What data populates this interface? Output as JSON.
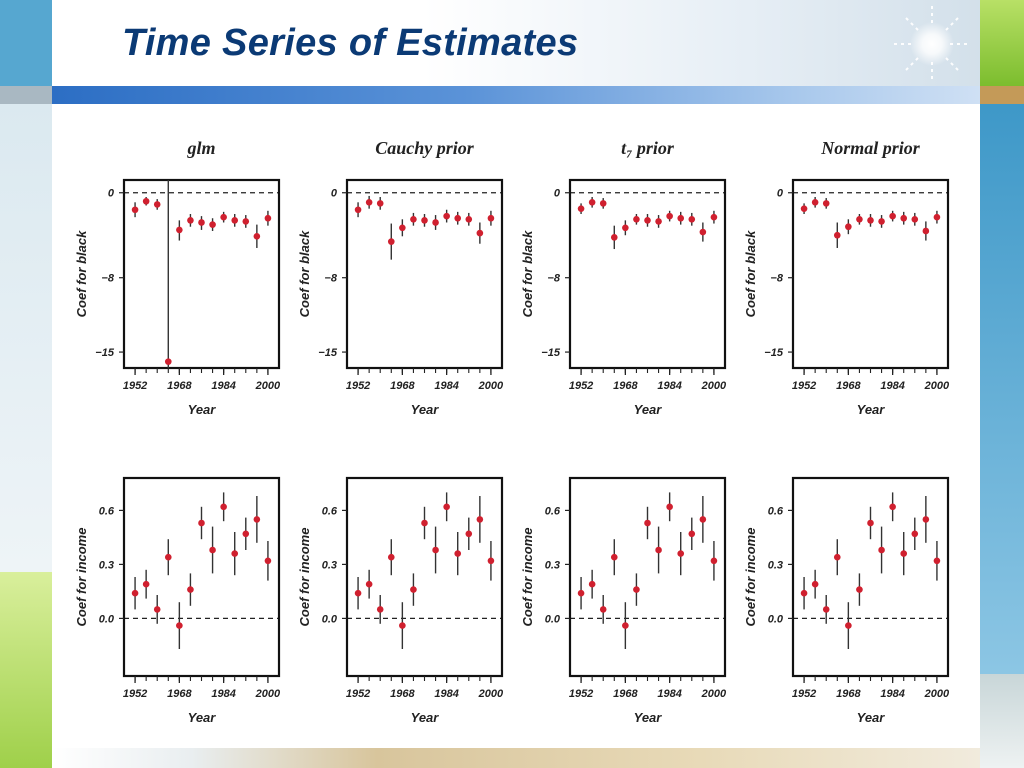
{
  "slide": {
    "title": "Time Series of Estimates",
    "colors": {
      "title": "#0b3a75",
      "marker": "#d0202f",
      "frame": "#111111",
      "accent_blue": "#3d7fd1",
      "accent_green": "#8cc63e"
    }
  },
  "chart_data": [
    {
      "type": "scatter",
      "title": "glm",
      "xlabel": "Year",
      "ylabel": "Coef for black",
      "xlim": [
        1948,
        2004
      ],
      "ylim": [
        -16.5,
        1.2
      ],
      "xticks": [
        "1952",
        "1968",
        "1984",
        "2000"
      ],
      "yticks": [
        "0",
        "-8",
        "-15"
      ],
      "ref_line": 0,
      "x": [
        1952,
        1956,
        1960,
        1964,
        1968,
        1972,
        1976,
        1980,
        1984,
        1988,
        1992,
        1996,
        2000
      ],
      "y": [
        -1.6,
        -0.8,
        -1.1,
        -15.9,
        -3.5,
        -2.6,
        -2.8,
        -3.0,
        -2.3,
        -2.6,
        -2.7,
        -4.1,
        -2.4
      ],
      "lower": [
        -2.3,
        -1.2,
        -1.6,
        -16.5,
        -4.5,
        -3.2,
        -3.5,
        -3.6,
        -2.8,
        -3.2,
        -3.3,
        -5.2,
        -3.1
      ],
      "upper": [
        -0.9,
        -0.4,
        -0.6,
        1.2,
        -2.6,
        -2.0,
        -2.2,
        -2.4,
        -1.8,
        -2.0,
        -2.1,
        -3.0,
        -1.7
      ]
    },
    {
      "type": "scatter",
      "title": "Cauchy prior",
      "xlabel": "Year",
      "ylabel": "Coef for black",
      "xlim": [
        1948,
        2004
      ],
      "ylim": [
        -16.5,
        1.2
      ],
      "xticks": [
        "1952",
        "1968",
        "1984",
        "2000"
      ],
      "yticks": [
        "0",
        "-8",
        "-15"
      ],
      "ref_line": 0,
      "x": [
        1952,
        1956,
        1960,
        1964,
        1968,
        1972,
        1976,
        1980,
        1984,
        1988,
        1992,
        1996,
        2000
      ],
      "y": [
        -1.6,
        -0.9,
        -1.0,
        -4.6,
        -3.3,
        -2.5,
        -2.6,
        -2.8,
        -2.2,
        -2.4,
        -2.5,
        -3.8,
        -2.4
      ],
      "lower": [
        -2.3,
        -1.5,
        -1.6,
        -6.3,
        -4.1,
        -3.1,
        -3.2,
        -3.5,
        -2.8,
        -3.0,
        -3.1,
        -4.8,
        -3.1
      ],
      "upper": [
        -0.9,
        -0.3,
        -0.4,
        -2.9,
        -2.5,
        -1.9,
        -2.0,
        -2.1,
        -1.6,
        -1.8,
        -1.9,
        -2.8,
        -1.7
      ]
    },
    {
      "type": "scatter",
      "title": "t₇ prior",
      "xlabel": "Year",
      "ylabel": "Coef for black",
      "xlim": [
        1948,
        2004
      ],
      "ylim": [
        -16.5,
        1.2
      ],
      "xticks": [
        "1952",
        "1968",
        "1984",
        "2000"
      ],
      "yticks": [
        "0",
        "-8",
        "-15"
      ],
      "ref_line": 0,
      "x": [
        1952,
        1956,
        1960,
        1964,
        1968,
        1972,
        1976,
        1980,
        1984,
        1988,
        1992,
        1996,
        2000
      ],
      "y": [
        -1.5,
        -0.9,
        -1.0,
        -4.2,
        -3.3,
        -2.5,
        -2.6,
        -2.7,
        -2.2,
        -2.4,
        -2.5,
        -3.7,
        -2.3
      ],
      "lower": [
        -2.0,
        -1.4,
        -1.5,
        -5.3,
        -4.0,
        -3.0,
        -3.2,
        -3.3,
        -2.7,
        -3.0,
        -3.1,
        -4.6,
        -2.9
      ],
      "upper": [
        -1.0,
        -0.4,
        -0.5,
        -3.1,
        -2.6,
        -2.0,
        -2.0,
        -2.1,
        -1.7,
        -1.8,
        -1.9,
        -2.8,
        -1.7
      ]
    },
    {
      "type": "scatter",
      "title": "Normal prior",
      "xlabel": "Year",
      "ylabel": "Coef for black",
      "xlim": [
        1948,
        2004
      ],
      "ylim": [
        -16.5,
        1.2
      ],
      "xticks": [
        "1952",
        "1968",
        "1984",
        "2000"
      ],
      "yticks": [
        "0",
        "-8",
        "-15"
      ],
      "ref_line": 0,
      "x": [
        1952,
        1956,
        1960,
        1964,
        1968,
        1972,
        1976,
        1980,
        1984,
        1988,
        1992,
        1996,
        2000
      ],
      "y": [
        -1.5,
        -0.9,
        -1.0,
        -4.0,
        -3.2,
        -2.5,
        -2.6,
        -2.7,
        -2.2,
        -2.4,
        -2.5,
        -3.6,
        -2.3
      ],
      "lower": [
        -2.0,
        -1.4,
        -1.5,
        -5.2,
        -3.9,
        -3.0,
        -3.2,
        -3.3,
        -2.7,
        -3.0,
        -3.1,
        -4.5,
        -2.9
      ],
      "upper": [
        -1.0,
        -0.4,
        -0.5,
        -2.8,
        -2.5,
        -2.0,
        -2.0,
        -2.1,
        -1.7,
        -1.8,
        -1.9,
        -2.7,
        -1.7
      ]
    },
    {
      "type": "scatter",
      "title": "",
      "xlabel": "Year",
      "ylabel": "Coef for income",
      "xlim": [
        1948,
        2004
      ],
      "ylim": [
        -0.32,
        0.78
      ],
      "xticks": [
        "1952",
        "1968",
        "1984",
        "2000"
      ],
      "yticks": [
        "0.6",
        "0.3",
        "0.0"
      ],
      "ref_line": 0,
      "x": [
        1952,
        1956,
        1960,
        1964,
        1968,
        1972,
        1976,
        1980,
        1984,
        1988,
        1992,
        1996,
        2000
      ],
      "y": [
        0.14,
        0.19,
        0.05,
        0.34,
        -0.04,
        0.16,
        0.53,
        0.38,
        0.62,
        0.36,
        0.47,
        0.55,
        0.32
      ],
      "lower": [
        0.05,
        0.11,
        -0.03,
        0.24,
        -0.17,
        0.07,
        0.44,
        0.25,
        0.54,
        0.24,
        0.38,
        0.42,
        0.21
      ],
      "upper": [
        0.23,
        0.27,
        0.13,
        0.44,
        0.09,
        0.25,
        0.62,
        0.51,
        0.7,
        0.48,
        0.56,
        0.68,
        0.43
      ]
    },
    {
      "type": "scatter",
      "title": "",
      "xlabel": "Year",
      "ylabel": "Coef for income",
      "xlim": [
        1948,
        2004
      ],
      "ylim": [
        -0.32,
        0.78
      ],
      "xticks": [
        "1952",
        "1968",
        "1984",
        "2000"
      ],
      "yticks": [
        "0.6",
        "0.3",
        "0.0"
      ],
      "ref_line": 0,
      "x": [
        1952,
        1956,
        1960,
        1964,
        1968,
        1972,
        1976,
        1980,
        1984,
        1988,
        1992,
        1996,
        2000
      ],
      "y": [
        0.14,
        0.19,
        0.05,
        0.34,
        -0.04,
        0.16,
        0.53,
        0.38,
        0.62,
        0.36,
        0.47,
        0.55,
        0.32
      ],
      "lower": [
        0.05,
        0.11,
        -0.03,
        0.24,
        -0.17,
        0.07,
        0.44,
        0.25,
        0.54,
        0.24,
        0.38,
        0.42,
        0.21
      ],
      "upper": [
        0.23,
        0.27,
        0.13,
        0.44,
        0.09,
        0.25,
        0.62,
        0.51,
        0.7,
        0.48,
        0.56,
        0.68,
        0.43
      ]
    },
    {
      "type": "scatter",
      "title": "",
      "xlabel": "Year",
      "ylabel": "Coef for income",
      "xlim": [
        1948,
        2004
      ],
      "ylim": [
        -0.32,
        0.78
      ],
      "xticks": [
        "1952",
        "1968",
        "1984",
        "2000"
      ],
      "yticks": [
        "0.6",
        "0.3",
        "0.0"
      ],
      "ref_line": 0,
      "x": [
        1952,
        1956,
        1960,
        1964,
        1968,
        1972,
        1976,
        1980,
        1984,
        1988,
        1992,
        1996,
        2000
      ],
      "y": [
        0.14,
        0.19,
        0.05,
        0.34,
        -0.04,
        0.16,
        0.53,
        0.38,
        0.62,
        0.36,
        0.47,
        0.55,
        0.32
      ],
      "lower": [
        0.05,
        0.11,
        -0.03,
        0.24,
        -0.17,
        0.07,
        0.44,
        0.25,
        0.54,
        0.24,
        0.38,
        0.42,
        0.21
      ],
      "upper": [
        0.23,
        0.27,
        0.13,
        0.44,
        0.09,
        0.25,
        0.62,
        0.51,
        0.7,
        0.48,
        0.56,
        0.68,
        0.43
      ]
    },
    {
      "type": "scatter",
      "title": "",
      "xlabel": "Year",
      "ylabel": "Coef for income",
      "xlim": [
        1948,
        2004
      ],
      "ylim": [
        -0.32,
        0.78
      ],
      "xticks": [
        "1952",
        "1968",
        "1984",
        "2000"
      ],
      "yticks": [
        "0.6",
        "0.3",
        "0.0"
      ],
      "ref_line": 0,
      "x": [
        1952,
        1956,
        1960,
        1964,
        1968,
        1972,
        1976,
        1980,
        1984,
        1988,
        1992,
        1996,
        2000
      ],
      "y": [
        0.14,
        0.19,
        0.05,
        0.34,
        -0.04,
        0.16,
        0.53,
        0.38,
        0.62,
        0.36,
        0.47,
        0.55,
        0.32
      ],
      "lower": [
        0.05,
        0.11,
        -0.03,
        0.24,
        -0.17,
        0.07,
        0.44,
        0.25,
        0.54,
        0.24,
        0.38,
        0.42,
        0.21
      ],
      "upper": [
        0.23,
        0.27,
        0.13,
        0.44,
        0.09,
        0.25,
        0.62,
        0.51,
        0.7,
        0.48,
        0.56,
        0.68,
        0.43
      ]
    }
  ]
}
